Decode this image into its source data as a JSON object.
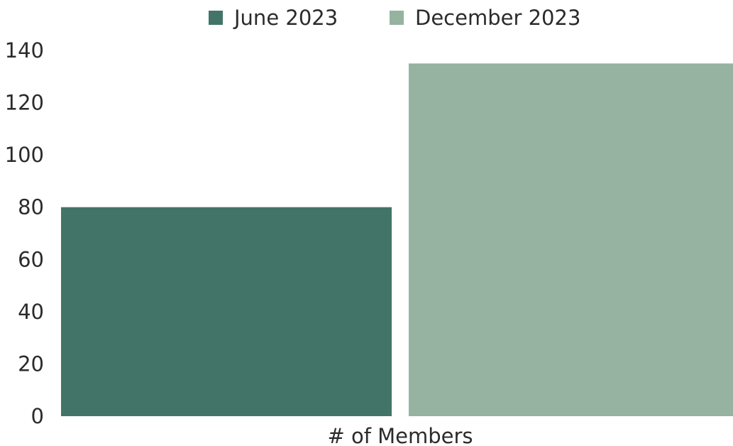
{
  "chart_data": {
    "type": "bar",
    "categories": [
      "# of Members"
    ],
    "series": [
      {
        "name": "June 2023",
        "values": [
          80
        ],
        "color": "#427567"
      },
      {
        "name": "December 2023",
        "values": [
          135
        ],
        "color": "#96b2a0"
      }
    ],
    "yticks": [
      "0",
      "20",
      "40",
      "60",
      "80",
      "100",
      "120",
      "140"
    ],
    "ylim": [
      0,
      140
    ],
    "grid": false,
    "legend_position": "top-center"
  }
}
